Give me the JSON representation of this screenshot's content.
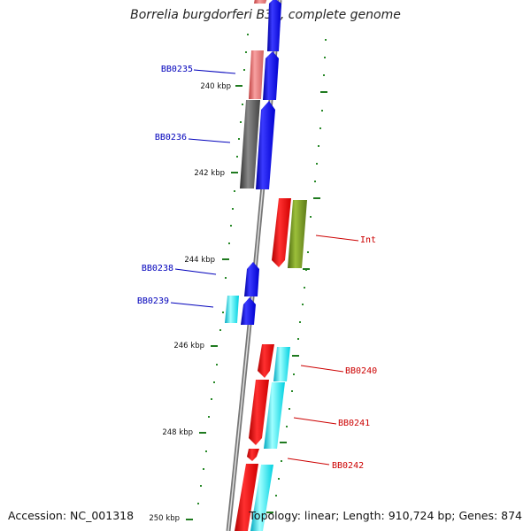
{
  "title": "Borrelia burgdorferi B31, complete genome",
  "footer": {
    "accession": "Accession: NC_001318",
    "topology": "Topology: linear; Length: 910,724 bp; Genes: 874"
  },
  "ticks": [
    {
      "label": "240 kbp"
    },
    {
      "label": "242 kbp"
    },
    {
      "label": "244 kbp"
    },
    {
      "label": "246 kbp"
    },
    {
      "label": "248 kbp"
    },
    {
      "label": "250 kbp"
    }
  ],
  "gene_labels_left": [
    {
      "label": "BB0235",
      "color": "#0000bb"
    },
    {
      "label": "BB0236",
      "color": "#0000bb"
    },
    {
      "label": "BB0238",
      "color": "#0000bb"
    },
    {
      "label": "BB0239",
      "color": "#0000bb"
    }
  ],
  "gene_labels_right": [
    {
      "label": "Int",
      "color": "#cc0000"
    },
    {
      "label": "BB0240",
      "color": "#cc0000"
    },
    {
      "label": "BB0241",
      "color": "#cc0000"
    },
    {
      "label": "BB0242",
      "color": "#cc0000"
    }
  ]
}
